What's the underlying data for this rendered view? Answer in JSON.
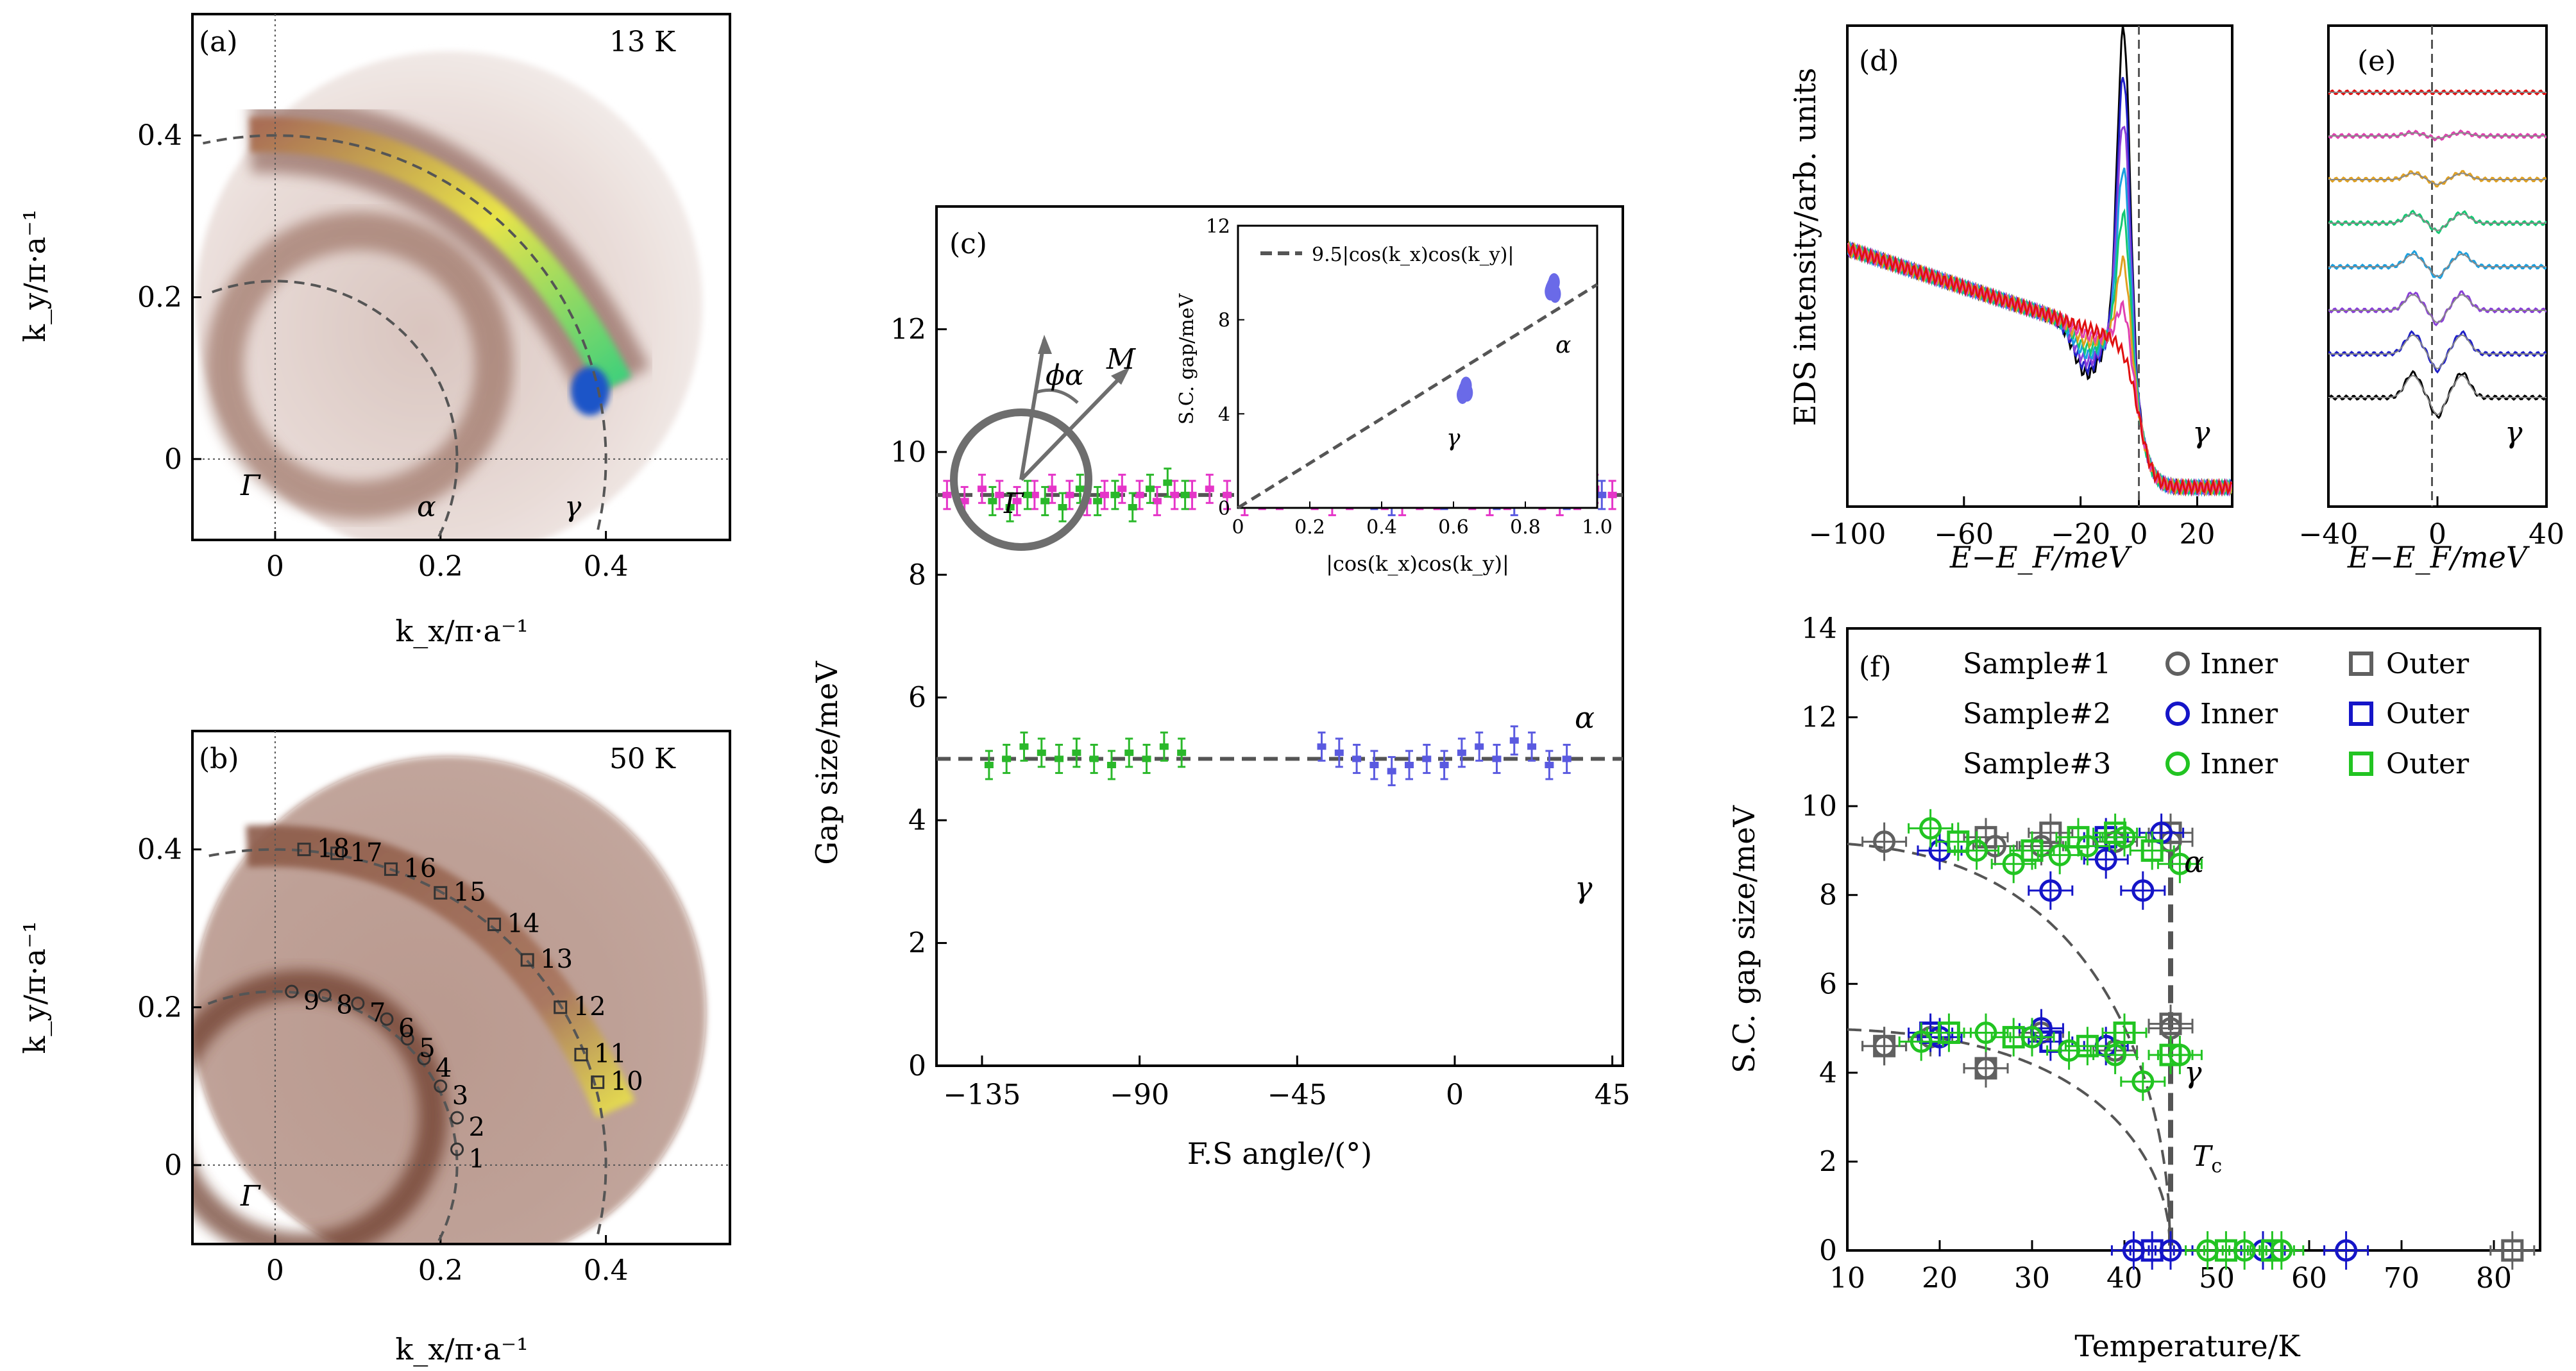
{
  "chart_data": [
    {
      "panel": "(a)",
      "type": "heatmap",
      "label": "(a)",
      "annotation": "13 K",
      "xlabel": "k_x/π·a⁻¹",
      "ylabel": "k_y/π·a⁻¹",
      "xlim": [
        -0.1,
        0.55
      ],
      "ylim": [
        -0.1,
        0.55
      ],
      "xticks": [
        "0",
        "0.2",
        "0.4"
      ],
      "yticks": [
        "0",
        "0.2",
        "0.4"
      ],
      "point_labels": [
        "Γ",
        "α",
        "γ"
      ],
      "colors": {
        "low": "#f2ece9",
        "mid": "#7a4a3c",
        "high": "#f2f060",
        "peak": "#1a55c8"
      }
    },
    {
      "panel": "(b)",
      "type": "heatmap",
      "label": "(b)",
      "annotation": "50 K",
      "xlabel": "k_x/π·a⁻¹",
      "ylabel": "k_y/π·a⁻¹",
      "xlim": [
        -0.1,
        0.55
      ],
      "ylim": [
        -0.1,
        0.55
      ],
      "xticks": [
        "0",
        "0.2",
        "0.4"
      ],
      "yticks": [
        "0",
        "0.2",
        "0.4"
      ],
      "point_labels": [
        "Γ"
      ],
      "cut_numbers": [
        "1",
        "2",
        "3",
        "4",
        "5",
        "6",
        "7",
        "8",
        "9",
        "10",
        "11",
        "12",
        "13",
        "14",
        "15",
        "16",
        "17",
        "18"
      ],
      "cut_points": [
        [
          0.22,
          0.02
        ],
        [
          0.22,
          0.06
        ],
        [
          0.2,
          0.1
        ],
        [
          0.18,
          0.135
        ],
        [
          0.16,
          0.16
        ],
        [
          0.135,
          0.185
        ],
        [
          0.1,
          0.205
        ],
        [
          0.06,
          0.215
        ],
        [
          0.02,
          0.22
        ],
        [
          0.39,
          0.105
        ],
        [
          0.37,
          0.14
        ],
        [
          0.345,
          0.2
        ],
        [
          0.305,
          0.26
        ],
        [
          0.265,
          0.305
        ],
        [
          0.2,
          0.345
        ],
        [
          0.14,
          0.375
        ],
        [
          0.075,
          0.395
        ],
        [
          0.035,
          0.4
        ]
      ]
    },
    {
      "panel": "(c)",
      "type": "scatter",
      "label": "(c)",
      "xlabel": "F.S angle/(°)",
      "ylabel": "Gap size/meV",
      "xlim": [
        -148,
        48
      ],
      "ylim": [
        0,
        14
      ],
      "xticks": [
        "−135",
        "−90",
        "−45",
        "0",
        "45"
      ],
      "yticks": [
        "0",
        "2",
        "4",
        "6",
        "8",
        "10",
        "12"
      ],
      "curve_labels": [
        "α",
        "γ"
      ],
      "reference_lines": [
        9.3,
        5.0
      ],
      "schematic_labels": {
        "gamma": "Γ",
        "phi": "ϕα",
        "M": "M"
      },
      "series": [
        {
          "color": "#e535c8",
          "x": [
            -145,
            -140,
            -135,
            -130,
            -125,
            -120,
            -115,
            -110,
            -105,
            -100,
            -95,
            -90,
            -85,
            -80,
            -75,
            -70,
            -65,
            -60,
            -55,
            -50,
            -45,
            -40,
            -35,
            -30,
            -25,
            -20,
            -15,
            -10,
            -5,
            0,
            5,
            10,
            15,
            20,
            25,
            30,
            35,
            40,
            45
          ],
          "y": [
            9.3,
            9.2,
            9.4,
            9.3,
            9.2,
            9.3,
            9.4,
            9.3,
            9.2,
            9.3,
            9.4,
            9.3,
            9.2,
            9.3,
            9.3,
            9.4,
            9.3,
            9.2,
            9.3,
            9.3,
            9.4,
            9.3,
            9.2,
            9.3,
            9.4,
            9.3,
            9.2,
            9.3,
            9.3,
            9.4,
            9.3,
            9.2,
            9.3,
            9.4,
            9.3,
            9.2,
            9.3,
            9.4,
            9.3
          ]
        },
        {
          "color": "#5a5ae0",
          "x": [
            -38,
            -33,
            -28,
            -23,
            -18,
            -13,
            -8,
            -3,
            2,
            7,
            12,
            17,
            22,
            27,
            32,
            37,
            42
          ],
          "y": [
            9.6,
            9.4,
            9.5,
            9.3,
            9.2,
            9.4,
            9.5,
            9.3,
            9.4,
            9.6,
            9.3,
            9.2,
            9.5,
            9.6,
            9.3,
            9.4,
            9.3
          ]
        },
        {
          "color": "#2ab82a",
          "x": [
            -132,
            -127,
            -122,
            -117,
            -112,
            -107,
            -102,
            -97,
            -92,
            -87,
            -82,
            -77
          ],
          "y": [
            9.2,
            9.1,
            9.3,
            9.2,
            9.1,
            9.4,
            9.2,
            9.3,
            9.1,
            9.4,
            9.5,
            9.3
          ]
        },
        {
          "color": "#2ab82a",
          "x": [
            -133,
            -128,
            -123,
            -118,
            -113,
            -108,
            -103,
            -98,
            -93,
            -88,
            -83,
            -78
          ],
          "y": [
            4.9,
            5.0,
            5.2,
            5.1,
            5.0,
            5.1,
            5.0,
            4.9,
            5.1,
            5.0,
            5.2,
            5.1
          ]
        },
        {
          "color": "#5a5ae0",
          "x": [
            -38,
            -33,
            -28,
            -23,
            -18,
            -13,
            -8,
            -3,
            2,
            7,
            12,
            17,
            22,
            27,
            32
          ],
          "y": [
            5.2,
            5.1,
            5.0,
            4.9,
            4.8,
            4.9,
            5.0,
            4.9,
            5.1,
            5.2,
            5.0,
            5.3,
            5.2,
            4.9,
            5.0
          ]
        }
      ]
    },
    {
      "panel": "(c)-inset",
      "type": "scatter",
      "xlabel": "|cos(k_x)cos(k_y)|",
      "ylabel": "S.C. gap/meV",
      "xlim": [
        0,
        1.0
      ],
      "ylim": [
        0,
        12
      ],
      "xticks": [
        "0",
        "0.2",
        "0.4",
        "0.6",
        "0.8",
        "1.0"
      ],
      "yticks": [
        "0",
        "4",
        "8",
        "12"
      ],
      "legend": "9.5|cos(k_x)cos(k_y)|",
      "fit_slope": 9.5,
      "point_labels": [
        "α",
        "γ"
      ],
      "series": [
        {
          "color": "#6a6ae8",
          "x": [
            0.87,
            0.875,
            0.88,
            0.872,
            0.878,
            0.883
          ],
          "y": [
            9.2,
            9.4,
            9.6,
            9.3,
            9.5,
            9.1
          ]
        },
        {
          "color": "#6a6ae8",
          "x": [
            0.625,
            0.63,
            0.635,
            0.628,
            0.633,
            0.638
          ],
          "y": [
            4.8,
            5.0,
            5.2,
            4.9,
            5.1,
            4.9
          ]
        }
      ]
    },
    {
      "panel": "(d)",
      "type": "line",
      "label": "(d)",
      "xlabel": "E−E_F/meV",
      "ylabel": "EDS intensity/arb. units",
      "xlim": [
        -100,
        32
      ],
      "xticks": [
        "−100",
        "−60",
        "−20",
        "0",
        "20"
      ],
      "curve_label": "γ",
      "series_colors": [
        "#000000",
        "#1f1fc8",
        "#8a3fd8",
        "#1aa0e0",
        "#14c872",
        "#e0a020",
        "#e040b0",
        "#e01010"
      ]
    },
    {
      "panel": "(e)",
      "type": "line",
      "label": "(e)",
      "xlabel": "E−E_F/meV",
      "xlim": [
        -40,
        40
      ],
      "xticks": [
        "−40",
        "0",
        "40"
      ],
      "curve_label": "γ",
      "series_colors": [
        "#000000",
        "#1f1fc8",
        "#8a3fd8",
        "#1aa0e0",
        "#14c872",
        "#e0a020",
        "#e040b0",
        "#e01010"
      ]
    },
    {
      "panel": "(f)",
      "type": "scatter",
      "label": "(f)",
      "xlabel": "Temperature/K",
      "ylabel": "S.C. gap size/meV",
      "xlim": [
        10,
        85
      ],
      "ylim": [
        0,
        14
      ],
      "xticks": [
        "10",
        "20",
        "30",
        "40",
        "50",
        "60",
        "70",
        "80"
      ],
      "yticks": [
        "0",
        "2",
        "4",
        "6",
        "8",
        "10",
        "12",
        "14"
      ],
      "curve_labels": [
        "α",
        "γ"
      ],
      "tc_label": "T",
      "tc_sub": "c",
      "tc": 45,
      "legend": {
        "rows": [
          {
            "name": "Sample#1",
            "color": "#606060",
            "inner": "Inner",
            "outer": "Outer"
          },
          {
            "name": "Sample#2",
            "color": "#1515c8",
            "inner": "Inner",
            "outer": "Outer"
          },
          {
            "name": "Sample#3",
            "color": "#22c422",
            "inner": "Inner",
            "outer": "Outer"
          }
        ]
      },
      "series": [
        {
          "name": "Sample#1 Inner",
          "marker": "circle",
          "color": "#606060",
          "x": [
            14,
            26,
            31,
            39,
            45
          ],
          "y": [
            9.2,
            9.1,
            9.1,
            9.2,
            9.2
          ]
        },
        {
          "name": "Sample#1 Outer",
          "marker": "square",
          "color": "#606060",
          "x": [
            25,
            32,
            45
          ],
          "y": [
            9.3,
            9.4,
            9.4
          ]
        },
        {
          "name": "Sample#2 Inner",
          "marker": "circle",
          "color": "#1515c8",
          "x": [
            20,
            32,
            38,
            42,
            44
          ],
          "y": [
            9.0,
            8.1,
            8.8,
            8.1,
            9.4
          ]
        },
        {
          "name": "Sample#2 Outer",
          "marker": "square",
          "color": "#1515c8",
          "x": [
            38
          ],
          "y": [
            9.3
          ]
        },
        {
          "name": "Sample#3 Inner",
          "marker": "circle",
          "color": "#22c422",
          "x": [
            19,
            24,
            28,
            33,
            36,
            40,
            46
          ],
          "y": [
            9.5,
            9.0,
            8.7,
            8.9,
            9.1,
            9.3,
            8.7
          ]
        },
        {
          "name": "Sample#3 Outer",
          "marker": "square",
          "color": "#22c422",
          "x": [
            22,
            30,
            35,
            39,
            43
          ],
          "y": [
            9.2,
            9.0,
            9.3,
            9.4,
            9.0
          ]
        },
        {
          "name": "Sample#1 Inner γ",
          "marker": "circle",
          "color": "#606060",
          "x": [
            14,
            19,
            25,
            31,
            39,
            45
          ],
          "y": [
            4.6,
            4.8,
            4.1,
            4.9,
            4.5,
            5.0
          ]
        },
        {
          "name": "Sample#1 Outer γ",
          "marker": "square",
          "color": "#606060",
          "x": [
            14,
            25,
            45
          ],
          "y": [
            4.6,
            4.1,
            5.1
          ]
        },
        {
          "name": "Sample#2 Inner γ",
          "marker": "circle",
          "color": "#1515c8",
          "x": [
            20,
            31,
            38
          ],
          "y": [
            4.8,
            5.0,
            4.6
          ]
        },
        {
          "name": "Sample#2 Outer γ",
          "marker": "square",
          "color": "#1515c8",
          "x": [
            19,
            32
          ],
          "y": [
            4.9,
            4.7
          ]
        },
        {
          "name": "Sample#3 Inner γ",
          "marker": "circle",
          "color": "#22c422",
          "x": [
            18,
            25,
            30,
            34,
            39,
            42,
            46
          ],
          "y": [
            4.7,
            4.9,
            4.8,
            4.5,
            4.4,
            3.8,
            4.4
          ]
        },
        {
          "name": "Sample#3 Outer γ",
          "marker": "square",
          "color": "#22c422",
          "x": [
            21,
            28,
            36,
            40,
            45
          ],
          "y": [
            4.9,
            4.8,
            4.6,
            4.9,
            4.4
          ]
        },
        {
          "name": "Sample#2 above Tc",
          "marker": "circle",
          "color": "#1515c8",
          "x": [
            41,
            45,
            55,
            64
          ],
          "y": [
            0,
            0,
            0,
            0
          ]
        },
        {
          "name": "Sample#2 Outer above Tc",
          "marker": "square",
          "color": "#1515c8",
          "x": [
            43
          ],
          "y": [
            0
          ]
        },
        {
          "name": "Sample#3 above Tc",
          "marker": "circle",
          "color": "#22c422",
          "x": [
            49,
            53,
            57
          ],
          "y": [
            0,
            0,
            0
          ]
        },
        {
          "name": "Sample#3 Outer above Tc",
          "marker": "square",
          "color": "#22c422",
          "x": [
            51,
            56
          ],
          "y": [
            0,
            0
          ]
        },
        {
          "name": "Sample#1 above Tc",
          "marker": "square",
          "color": "#606060",
          "x": [
            82
          ],
          "y": [
            0
          ]
        }
      ]
    }
  ]
}
